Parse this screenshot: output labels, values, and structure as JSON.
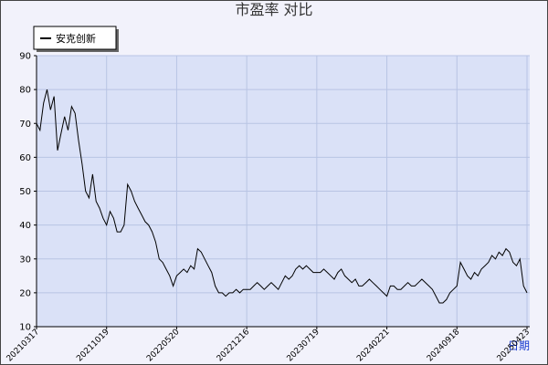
{
  "chart_data": {
    "type": "line",
    "title": "市盈率  对比",
    "xlabel": "日期",
    "categories": [
      "20210317",
      null,
      null,
      null,
      null,
      null,
      null,
      null,
      null,
      null,
      null,
      null,
      null,
      null,
      null,
      null,
      null,
      null,
      null,
      null,
      "20211019",
      null,
      null,
      null,
      null,
      null,
      null,
      null,
      null,
      null,
      null,
      null,
      null,
      null,
      null,
      null,
      null,
      null,
      null,
      null,
      "20220520",
      null,
      null,
      null,
      null,
      null,
      null,
      null,
      null,
      null,
      null,
      null,
      null,
      null,
      null,
      null,
      null,
      null,
      null,
      null,
      "20221216",
      null,
      null,
      null,
      null,
      null,
      null,
      null,
      null,
      null,
      null,
      null,
      null,
      null,
      null,
      null,
      null,
      null,
      null,
      null,
      "20230719",
      null,
      null,
      null,
      null,
      null,
      null,
      null,
      null,
      null,
      null,
      null,
      null,
      null,
      null,
      null,
      null,
      null,
      null,
      null,
      "20240221",
      null,
      null,
      null,
      null,
      null,
      null,
      null,
      null,
      null,
      null,
      null,
      null,
      null,
      null,
      null,
      null,
      null,
      null,
      null,
      "20240918",
      null,
      null,
      null,
      null,
      null,
      null,
      null,
      null,
      null,
      null,
      null,
      null,
      null,
      null,
      null,
      null,
      null,
      null,
      null,
      "20250423"
    ],
    "series": [
      {
        "name": "安克创新",
        "color": "#000000",
        "values": [
          70,
          68,
          76,
          80,
          74,
          78,
          62,
          67,
          72,
          68,
          75,
          73,
          65,
          58,
          50,
          48,
          55,
          47,
          45,
          42,
          40,
          44,
          42,
          38,
          38,
          40,
          52,
          50,
          47,
          45,
          43,
          41,
          40,
          38,
          35,
          30,
          29,
          27,
          25,
          22,
          25,
          26,
          27,
          26,
          28,
          27,
          33,
          32,
          30,
          28,
          26,
          22,
          20,
          20,
          19,
          20,
          20,
          21,
          20,
          21,
          21,
          21,
          22,
          23,
          22,
          21,
          22,
          23,
          22,
          21,
          23,
          25,
          24,
          25,
          27,
          28,
          27,
          28,
          27,
          26,
          26,
          26,
          27,
          26,
          25,
          24,
          26,
          27,
          25,
          24,
          23,
          24,
          22,
          22,
          23,
          24,
          23,
          22,
          21,
          20,
          19,
          22,
          22,
          21,
          21,
          22,
          23,
          22,
          22,
          23,
          24,
          23,
          22,
          21,
          19,
          17,
          17,
          18,
          20,
          21,
          22,
          29,
          27,
          25,
          24,
          26,
          25,
          27,
          28,
          29,
          31,
          30,
          32,
          31,
          33,
          32,
          29,
          28,
          30,
          22,
          20
        ]
      }
    ],
    "ylim": [
      10,
      90
    ],
    "yticks": [
      10,
      20,
      30,
      40,
      50,
      60,
      70,
      80,
      90
    ],
    "grid": true,
    "legend": "top-left"
  }
}
